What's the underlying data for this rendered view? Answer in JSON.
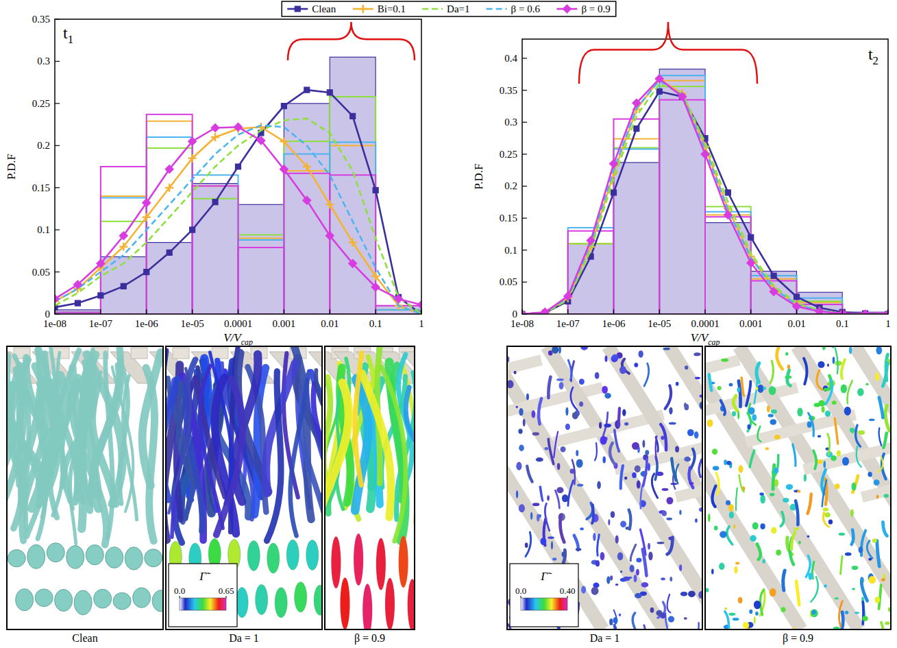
{
  "chart_data": [
    {
      "type": "histogram",
      "title": {
        "text": "t",
        "subscript": "1"
      },
      "xlabel": {
        "text": "V/V",
        "subscript": "cap"
      },
      "ylabel": "P.D.F",
      "log": "x",
      "legend": "top",
      "bins": [
        1e-08,
        1e-07,
        1e-06,
        1e-05,
        0.0001,
        0.001,
        0.01,
        0.1,
        1
      ],
      "x": [
        1e-08,
        3.16e-08,
        1e-07,
        3.16e-07,
        1e-06,
        3.16e-06,
        1e-05,
        3.16e-05,
        0.0001,
        0.000316,
        0.001,
        0.00316,
        0.01,
        0.0316,
        0.1,
        0.316,
        1
      ],
      "xlim": [
        1e-08,
        1
      ],
      "xticks": [
        {
          "value": 1e-08,
          "label": "1e-08"
        },
        {
          "value": 1e-07,
          "label": "1e-07"
        },
        {
          "value": 1e-06,
          "label": "1e-06"
        },
        {
          "value": 1e-05,
          "label": "1e-05"
        },
        0.0001,
        0.001,
        0.01,
        0.1,
        1
      ],
      "ylim": [
        0,
        0.35
      ],
      "yticks": [
        0,
        0.05,
        0.1,
        0.15,
        0.2,
        0.25,
        0.3,
        0.35
      ],
      "series": [
        {
          "name": "Clean",
          "color": "#3b2f9e",
          "marker": "square",
          "line_style": "solid",
          "values": [
            0.005,
            0.068,
            0.085,
            0.155,
            0.13,
            0.25,
            0.305,
            0.01
          ],
          "fit_values": [
            0.008,
            0.013,
            0.022,
            0.033,
            0.05,
            0.073,
            0.1,
            0.133,
            0.175,
            0.215,
            0.247,
            0.266,
            0.263,
            0.235,
            0.147,
            0.02,
            0
          ]
        },
        {
          "name": "Bi=0.1",
          "color": "#f5b335",
          "marker": "plus",
          "line_style": "solid",
          "values": [
            0.002,
            0.14,
            0.229,
            0.152,
            0.09,
            0.17,
            0.2,
            0.005
          ],
          "fit_values": [
            0.015,
            0.03,
            0.055,
            0.08,
            0.115,
            0.15,
            0.185,
            0.21,
            0.22,
            0.222,
            0.205,
            0.175,
            0.13,
            0.085,
            0.045,
            0.01,
            0
          ]
        },
        {
          "name": "Da=1",
          "color": "#8ee03c",
          "marker": "none",
          "line_style": "dashed",
          "values": [
            0.002,
            0.11,
            0.197,
            0.137,
            0.094,
            0.205,
            0.258,
            0.005
          ],
          "fit_values": [
            0.01,
            0.025,
            0.045,
            0.06,
            0.085,
            0.115,
            0.145,
            0.175,
            0.2,
            0.218,
            0.23,
            0.232,
            0.215,
            0.17,
            0.09,
            0.02,
            0
          ]
        },
        {
          "name": "β = 0.6",
          "color": "#4cb4ee",
          "marker": "none",
          "line_style": "dashed",
          "values": [
            0.002,
            0.138,
            0.21,
            0.165,
            0.088,
            0.19,
            0.204,
            0.005
          ],
          "fit_values": [
            0.015,
            0.03,
            0.05,
            0.07,
            0.1,
            0.13,
            0.16,
            0.19,
            0.213,
            0.224,
            0.222,
            0.2,
            0.165,
            0.11,
            0.055,
            0.01,
            0
          ]
        },
        {
          "name": "β = 0.9",
          "color": "#d83ce0",
          "marker": "diamond",
          "line_style": "solid",
          "values": [
            0.002,
            0.175,
            0.237,
            0.152,
            0.079,
            0.167,
            0.165,
            0.01
          ],
          "fit_values": [
            0.018,
            0.035,
            0.06,
            0.093,
            0.132,
            0.172,
            0.205,
            0.221,
            0.222,
            0.206,
            0.172,
            0.135,
            0.093,
            0.06,
            0.032,
            0.018,
            0.011
          ]
        }
      ]
    },
    {
      "type": "histogram",
      "title": {
        "text": "t",
        "subscript": "2"
      },
      "xlabel": {
        "text": "V/V",
        "subscript": "cap"
      },
      "ylabel": "P.D.F",
      "log": "x",
      "bins": [
        1e-08,
        1e-07,
        1e-06,
        1e-05,
        0.0001,
        0.001,
        0.01,
        0.1,
        1
      ],
      "x": [
        1e-08,
        3.16e-08,
        1e-07,
        3.16e-07,
        1e-06,
        3.16e-06,
        1e-05,
        3.16e-05,
        0.0001,
        0.000316,
        0.001,
        0.00316,
        0.01,
        0.0316,
        0.1,
        0.316,
        1
      ],
      "xlim": [
        1e-08,
        1
      ],
      "xticks": [
        {
          "value": 1e-08,
          "label": "1e-08"
        },
        {
          "value": 1e-07,
          "label": "1e-07"
        },
        {
          "value": 1e-06,
          "label": "1e-06"
        },
        {
          "value": 1e-05,
          "label": "1e-05"
        },
        0.0001,
        0.001,
        0.01,
        0.1,
        1
      ],
      "ylim": [
        0,
        0.43
      ],
      "yticks": [
        0,
        0.05,
        0.1,
        0.15,
        0.2,
        0.25,
        0.3,
        0.35,
        0.4
      ],
      "series": [
        {
          "name": "Clean",
          "color": "#3b2f9e",
          "marker": "square",
          "line_style": "solid",
          "values": [
            0,
            0.11,
            0.237,
            0.383,
            0.143,
            0.067,
            0.034,
            0.003
          ],
          "fit_values": [
            0,
            0.002,
            0.02,
            0.09,
            0.19,
            0.29,
            0.348,
            0.34,
            0.275,
            0.19,
            0.12,
            0.06,
            0.027,
            0.01,
            0.003,
            0.001,
            0
          ]
        },
        {
          "name": "Bi=0.1",
          "color": "#f5b335",
          "marker": "plus",
          "line_style": "solid",
          "values": [
            0,
            0.11,
            0.274,
            0.365,
            0.155,
            0.055,
            0.018,
            0.002
          ],
          "fit_values": [
            0,
            0.003,
            0.025,
            0.105,
            0.22,
            0.32,
            0.367,
            0.345,
            0.262,
            0.165,
            0.09,
            0.04,
            0.015,
            0.005,
            0.001,
            0,
            0
          ]
        },
        {
          "name": "Da=1",
          "color": "#8ee03c",
          "marker": "none",
          "line_style": "dashed",
          "values": [
            0,
            0.11,
            0.26,
            0.356,
            0.168,
            0.06,
            0.02,
            0.002
          ],
          "fit_values": [
            0,
            0.002,
            0.022,
            0.1,
            0.212,
            0.31,
            0.36,
            0.345,
            0.268,
            0.175,
            0.095,
            0.044,
            0.017,
            0.006,
            0.001,
            0,
            0
          ]
        },
        {
          "name": "β = 0.6",
          "color": "#4cb4ee",
          "marker": "none",
          "line_style": "dashed",
          "values": [
            0,
            0.135,
            0.258,
            0.373,
            0.16,
            0.06,
            0.025,
            0.002
          ],
          "fit_values": [
            0,
            0.003,
            0.026,
            0.11,
            0.225,
            0.322,
            0.365,
            0.342,
            0.258,
            0.163,
            0.088,
            0.04,
            0.015,
            0.005,
            0.001,
            0,
            0
          ]
        },
        {
          "name": "β = 0.9",
          "color": "#d83ce0",
          "marker": "diamond",
          "line_style": "solid",
          "values": [
            0,
            0.13,
            0.305,
            0.335,
            0.152,
            0.052,
            0.015,
            0.002
          ],
          "fit_values": [
            0,
            0.003,
            0.028,
            0.115,
            0.235,
            0.33,
            0.368,
            0.34,
            0.25,
            0.155,
            0.08,
            0.035,
            0.012,
            0.004,
            0.001,
            0,
            0
          ]
        }
      ]
    }
  ],
  "renderings": {
    "groups": [
      {
        "panels": [
          {
            "label": "Clean"
          },
          {
            "label": "Da = 1",
            "colorbar": {
              "label": "Γ̃",
              "range": [
                0,
                0.65
              ],
              "ticks": [
                {
                  "value": 0,
                  "label": "0.0"
                },
                {
                  "value": 0.65,
                  "label": "0.65"
                }
              ]
            }
          },
          {
            "label": "β = 0.9"
          }
        ]
      },
      {
        "panels": [
          {
            "label": "Da = 1",
            "colorbar": {
              "label": "Γ̃",
              "range": [
                0,
                0.4
              ],
              "ticks": [
                {
                  "value": 0,
                  "label": "0.0"
                },
                {
                  "value": 0.4,
                  "label": "0.40"
                }
              ]
            }
          },
          {
            "label": "β = 0.9"
          }
        ]
      }
    ]
  }
}
